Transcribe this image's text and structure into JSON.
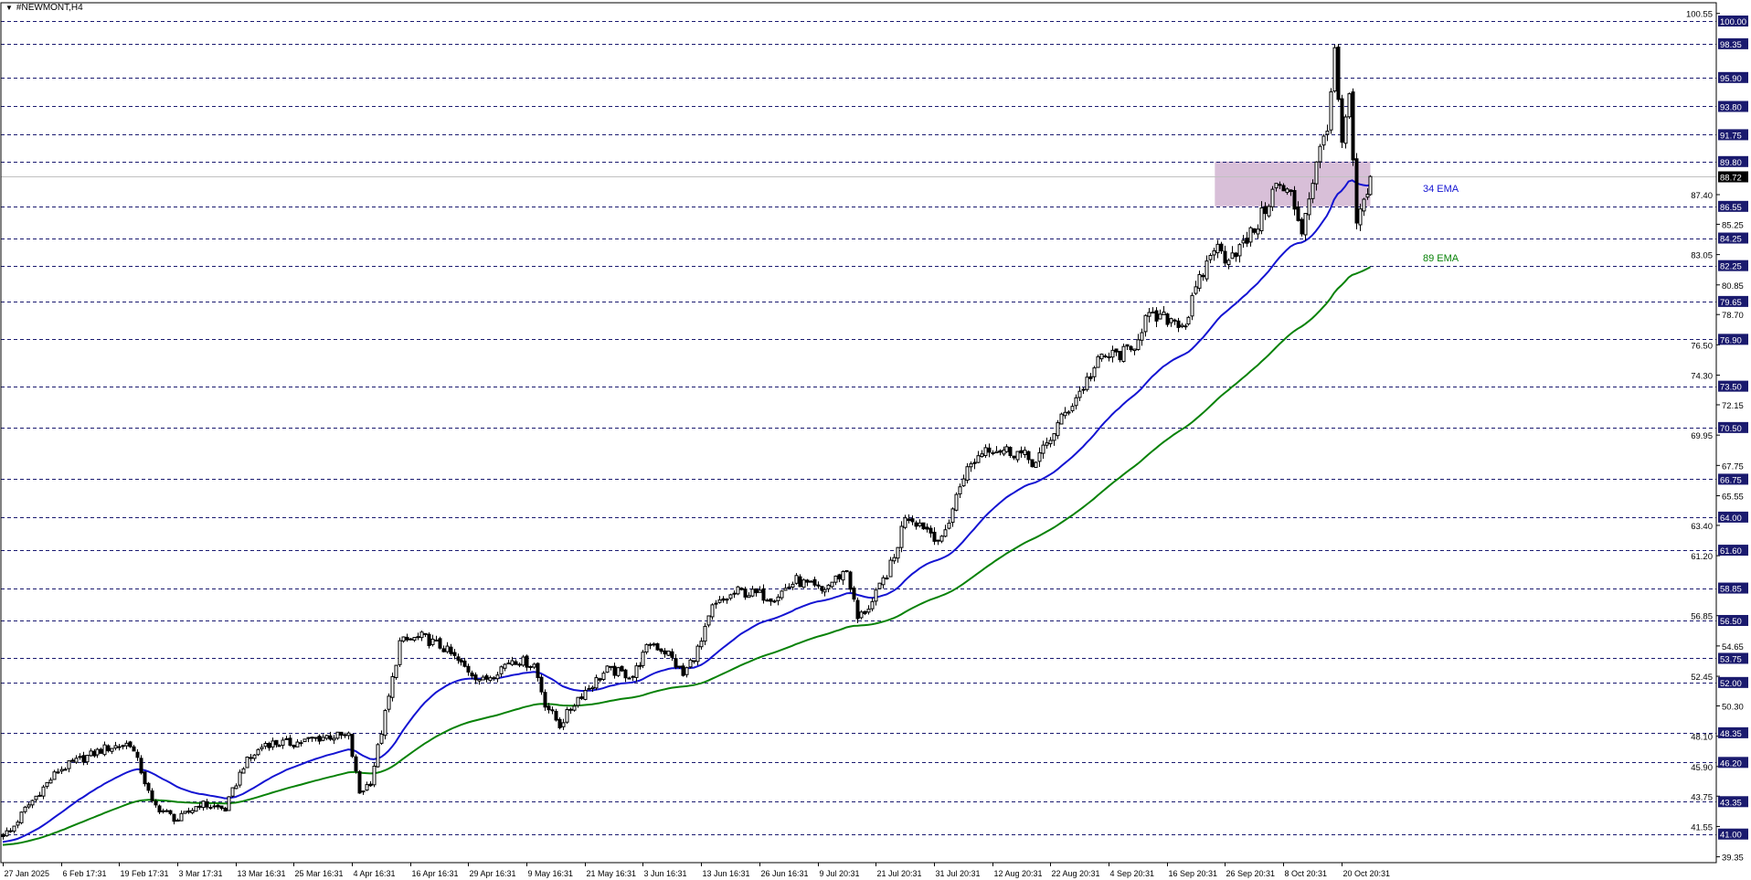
{
  "header": {
    "symbol_title": "#NEWMONT,H4",
    "dropdown_icon": "triangle-down-icon"
  },
  "chart_data": {
    "type": "candlestick",
    "title": "#NEWMONT,H4",
    "timeframe": "H4",
    "ylim": [
      38.5,
      101.3
    ],
    "candle_count": 377,
    "close_path": [
      [
        0,
        41.0
      ],
      [
        2,
        41.2
      ],
      [
        6,
        42.8
      ],
      [
        15,
        45.6
      ],
      [
        21,
        46.4
      ],
      [
        28,
        47.2
      ],
      [
        35,
        47.6
      ],
      [
        38,
        45.6
      ],
      [
        41,
        43.2
      ],
      [
        48,
        42.0
      ],
      [
        54,
        43.2
      ],
      [
        61,
        42.8
      ],
      [
        66,
        46.0
      ],
      [
        72,
        47.6
      ],
      [
        80,
        47.6
      ],
      [
        89,
        48.1
      ],
      [
        95,
        48.1
      ],
      [
        98,
        44.0
      ],
      [
        101,
        44.8
      ],
      [
        106,
        50.9
      ],
      [
        109,
        54.9
      ],
      [
        115,
        55.3
      ],
      [
        121,
        54.5
      ],
      [
        126,
        53.3
      ],
      [
        132,
        52.1
      ],
      [
        140,
        53.7
      ],
      [
        146,
        53.3
      ],
      [
        149,
        50.5
      ],
      [
        153,
        48.9
      ],
      [
        158,
        50.9
      ],
      [
        166,
        52.9
      ],
      [
        173,
        52.5
      ],
      [
        178,
        54.9
      ],
      [
        183,
        54.1
      ],
      [
        187,
        52.5
      ],
      [
        192,
        54.9
      ],
      [
        195,
        57.4
      ],
      [
        202,
        58.6
      ],
      [
        212,
        58.2
      ],
      [
        218,
        59.4
      ],
      [
        225,
        58.6
      ],
      [
        232,
        60.2
      ],
      [
        235,
        56.6
      ],
      [
        239,
        57.8
      ],
      [
        245,
        61.0
      ],
      [
        248,
        64.2
      ],
      [
        253,
        63.4
      ],
      [
        258,
        62.2
      ],
      [
        264,
        67.1
      ],
      [
        270,
        69.1
      ],
      [
        279,
        68.7
      ],
      [
        284,
        67.9
      ],
      [
        290,
        70.7
      ],
      [
        296,
        73.1
      ],
      [
        302,
        75.6
      ],
      [
        310,
        76.0
      ],
      [
        314,
        78.4
      ],
      [
        321,
        78.4
      ],
      [
        325,
        78.0
      ],
      [
        328,
        80.4
      ],
      [
        333,
        83.7
      ],
      [
        336,
        82.9
      ],
      [
        341,
        83.7
      ],
      [
        345,
        85.3
      ],
      [
        350,
        88.1
      ],
      [
        354,
        87.3
      ],
      [
        357,
        84.9
      ],
      [
        360,
        88.5
      ],
      [
        364,
        92.6
      ],
      [
        366,
        97.4
      ],
      [
        368,
        91.0
      ],
      [
        370,
        94.2
      ],
      [
        372,
        85.3
      ],
      [
        374,
        86.5
      ],
      [
        376,
        88.72
      ]
    ],
    "indicators": [
      {
        "name": "34 EMA",
        "period": 34,
        "color": "#1414d2",
        "seed": 40.4
      },
      {
        "name": "89 EMA",
        "period": 89,
        "color": "#088208",
        "seed": 40.2
      }
    ],
    "current_price": "88.72",
    "horizontal_levels": [
      "100.00",
      "98.35",
      "95.90",
      "93.80",
      "91.75",
      "89.80",
      "86.55",
      "84.25",
      "82.25",
      "79.65",
      "76.90",
      "73.50",
      "70.50",
      "66.75",
      "64.00",
      "61.60",
      "58.85",
      "56.50",
      "53.75",
      "52.00",
      "48.35",
      "46.20",
      "43.35",
      "41.00"
    ],
    "zone": {
      "from_price": 86.55,
      "to_price": 89.8,
      "from_candle": 334,
      "to_candle": 376,
      "color": "#d8bfd8"
    },
    "y_ticks": [
      "100.55",
      "87.40",
      "85.25",
      "83.05",
      "80.85",
      "78.70",
      "76.50",
      "74.30",
      "72.15",
      "69.95",
      "67.75",
      "65.55",
      "63.40",
      "61.20",
      "56.85",
      "54.65",
      "52.45",
      "50.30",
      "48.10",
      "45.90",
      "43.75",
      "41.55",
      "39.35"
    ],
    "x_ticks": [
      "27 Jan 2025",
      "6 Feb 17:31",
      "19 Feb 17:31",
      "3 Mar 17:31",
      "13 Mar 16:31",
      "25 Mar 16:31",
      "4 Apr 16:31",
      "16 Apr 16:31",
      "29 Apr 16:31",
      "9 May 16:31",
      "21 May 16:31",
      "3 Jun 16:31",
      "13 Jun 16:31",
      "26 Jun 16:31",
      "9 Jul 20:31",
      "21 Jul 20:31",
      "31 Jul 20:31",
      "12 Aug 20:31",
      "22 Aug 20:31",
      "4 Sep 20:31",
      "16 Sep 20:31",
      "26 Sep 20:31",
      "8 Oct 20:31",
      "20 Oct 20:31"
    ],
    "x_tick_every_candles": 16,
    "colors": {
      "level_line": "#1a1a70",
      "level_label_bg": "#1a1a6e",
      "bull_body": "#ffffff",
      "bear_body": "#000000",
      "price_line": "#c0c0c0"
    }
  }
}
